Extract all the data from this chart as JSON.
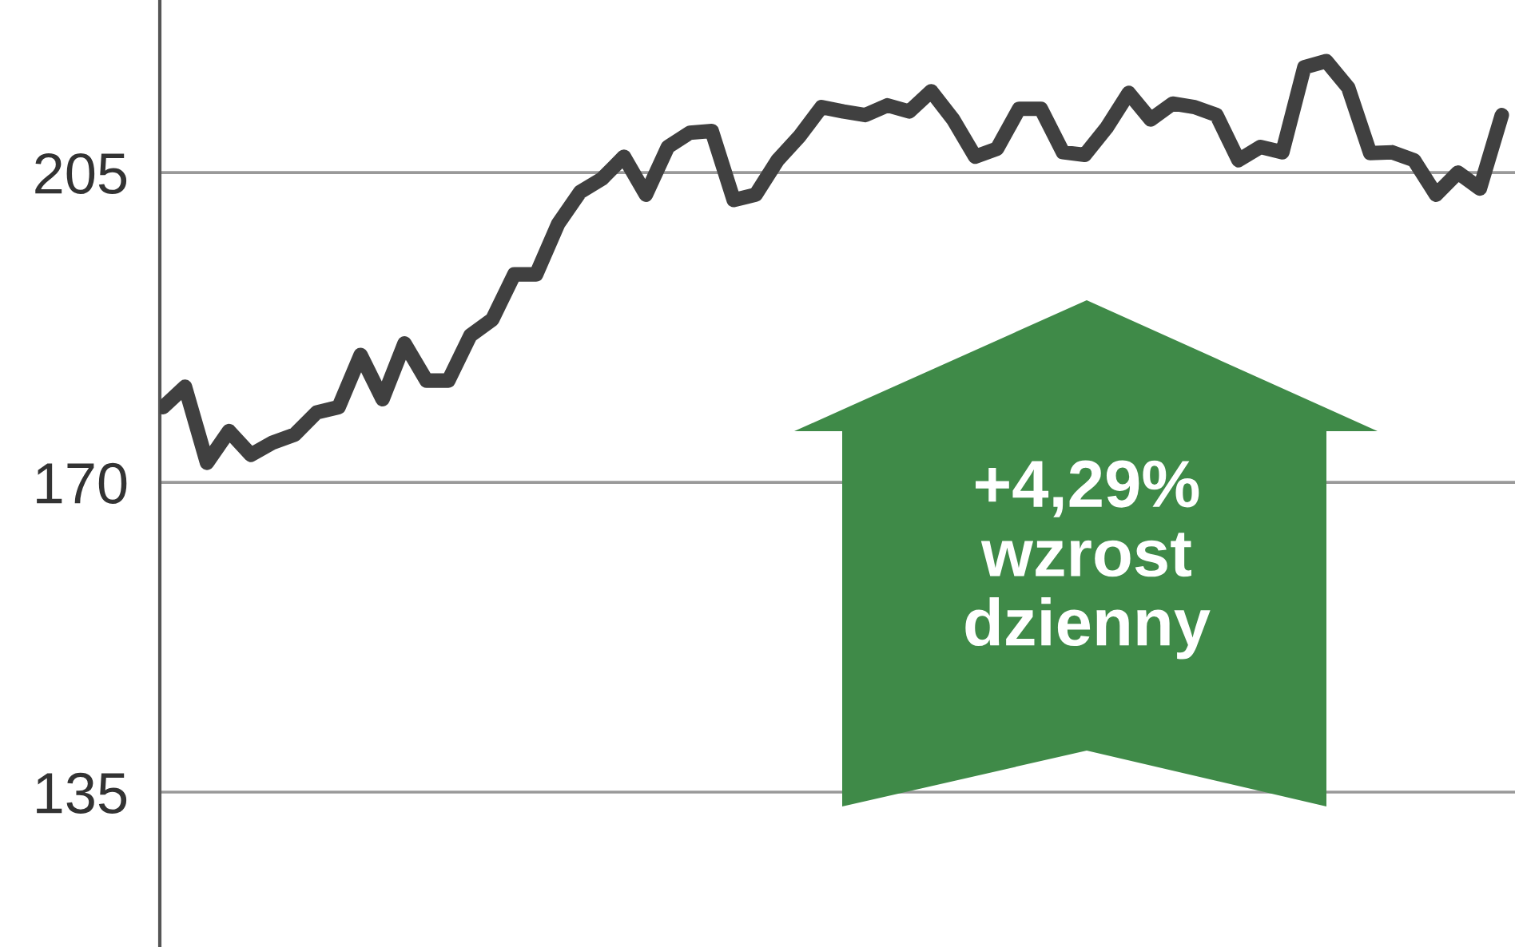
{
  "chart_data": {
    "type": "line",
    "categories": [
      null,
      null,
      null,
      null,
      null,
      null,
      null,
      null,
      null,
      null,
      null,
      null,
      null,
      null,
      null,
      null,
      null,
      null,
      null,
      null,
      null,
      null,
      null,
      null,
      null,
      null,
      null,
      null,
      null,
      null,
      null,
      null,
      null,
      null,
      null,
      null,
      null,
      null,
      null,
      null,
      null,
      null,
      null,
      null,
      null,
      null,
      null,
      null,
      null,
      null,
      null,
      null,
      null,
      null,
      null,
      null,
      null,
      null,
      null,
      null,
      null,
      null
    ],
    "series": [
      {
        "color": "#404040",
        "values": [
          178.5,
          180.8,
          172.2,
          175.8,
          173.1,
          174.5,
          175.4,
          177.9,
          178.5,
          184.4,
          179.4,
          185.7,
          181.5,
          181.5,
          186.6,
          188.4,
          193.5,
          193.5,
          199.2,
          202.8,
          204.3,
          206.8,
          202.5,
          207.9,
          209.5,
          209.7,
          201.9,
          202.5,
          206.4,
          209.1,
          212.4,
          211.9,
          211.5,
          212.6,
          211.9,
          214.2,
          211.0,
          206.8,
          207.7,
          212.2,
          212.2,
          207.3,
          207.0,
          210.1,
          214.0,
          211.0,
          212.8,
          212.4,
          211.5,
          206.4,
          207.9,
          207.3,
          216.9,
          217.6,
          214.6,
          207.2,
          207.3,
          206.4,
          202.5,
          205.0,
          203.2,
          211.5
        ]
      }
    ],
    "ylim": [
      117.5,
      224.5
    ],
    "yticks": [
      135,
      170,
      205
    ],
    "grid": "y",
    "tick_labels": "y",
    "annotations": [
      "+4,29%\nwzrost\ndzienny"
    ]
  }
}
